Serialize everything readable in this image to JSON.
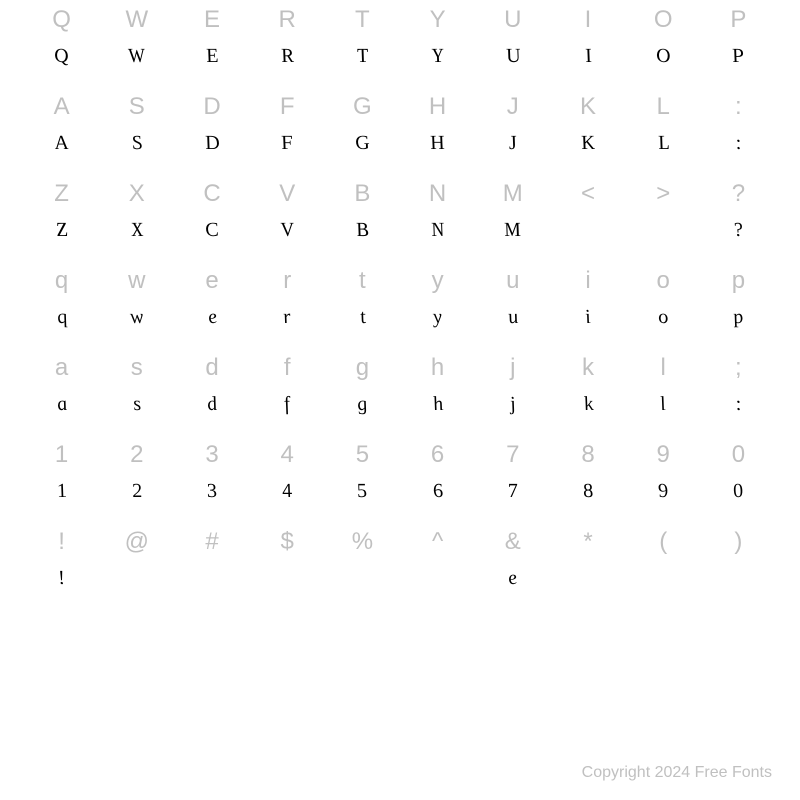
{
  "grid": {
    "ref_color": "#c0c0c0",
    "glyph_color": "#000000",
    "background_color": "#ffffff",
    "ref_fontsize": 24,
    "glyph_fontsize": 20,
    "columns": 10,
    "rows": [
      {
        "ref": [
          "Q",
          "W",
          "E",
          "R",
          "T",
          "Y",
          "U",
          "I",
          "O",
          "P"
        ],
        "glyph": [
          "Q",
          "W",
          "E",
          "R",
          "T",
          "Y",
          "U",
          "I",
          "O",
          "P"
        ]
      },
      {
        "ref": [
          "A",
          "S",
          "D",
          "F",
          "G",
          "H",
          "J",
          "K",
          "L",
          ":"
        ],
        "glyph": [
          "A",
          "S",
          "D",
          "F",
          "G",
          "H",
          "J",
          "K",
          "L",
          ":"
        ]
      },
      {
        "ref": [
          "Z",
          "X",
          "C",
          "V",
          "B",
          "N",
          "M",
          "<",
          ">",
          "?"
        ],
        "glyph": [
          "Z",
          "X",
          "C",
          "V",
          "B",
          "N",
          "M",
          "",
          "",
          "?"
        ]
      },
      {
        "ref": [
          "q",
          "w",
          "e",
          "r",
          "t",
          "y",
          "u",
          "i",
          "o",
          "p"
        ],
        "glyph": [
          "q",
          "w",
          "e",
          "r",
          "t",
          "y",
          "u",
          "i",
          "o",
          "p"
        ]
      },
      {
        "ref": [
          "a",
          "s",
          "d",
          "f",
          "g",
          "h",
          "j",
          "k",
          "l",
          ";"
        ],
        "glyph": [
          "a",
          "s",
          "d",
          "f",
          "g",
          "h",
          "j",
          "k",
          "l",
          ":"
        ]
      },
      {
        "ref": [
          "1",
          "2",
          "3",
          "4",
          "5",
          "6",
          "7",
          "8",
          "9",
          "0"
        ],
        "glyph": [
          "1",
          "2",
          "3",
          "4",
          "5",
          "6",
          "7",
          "8",
          "9",
          "0"
        ]
      },
      {
        "ref": [
          "!",
          "@",
          "#",
          "$",
          "%",
          "^",
          "&",
          "*",
          "(",
          ")"
        ],
        "glyph": [
          "!",
          "",
          "",
          "",
          "",
          "",
          "e",
          "",
          "",
          ""
        ]
      }
    ]
  },
  "footer": {
    "text": "Copyright 2024 Free Fonts"
  }
}
